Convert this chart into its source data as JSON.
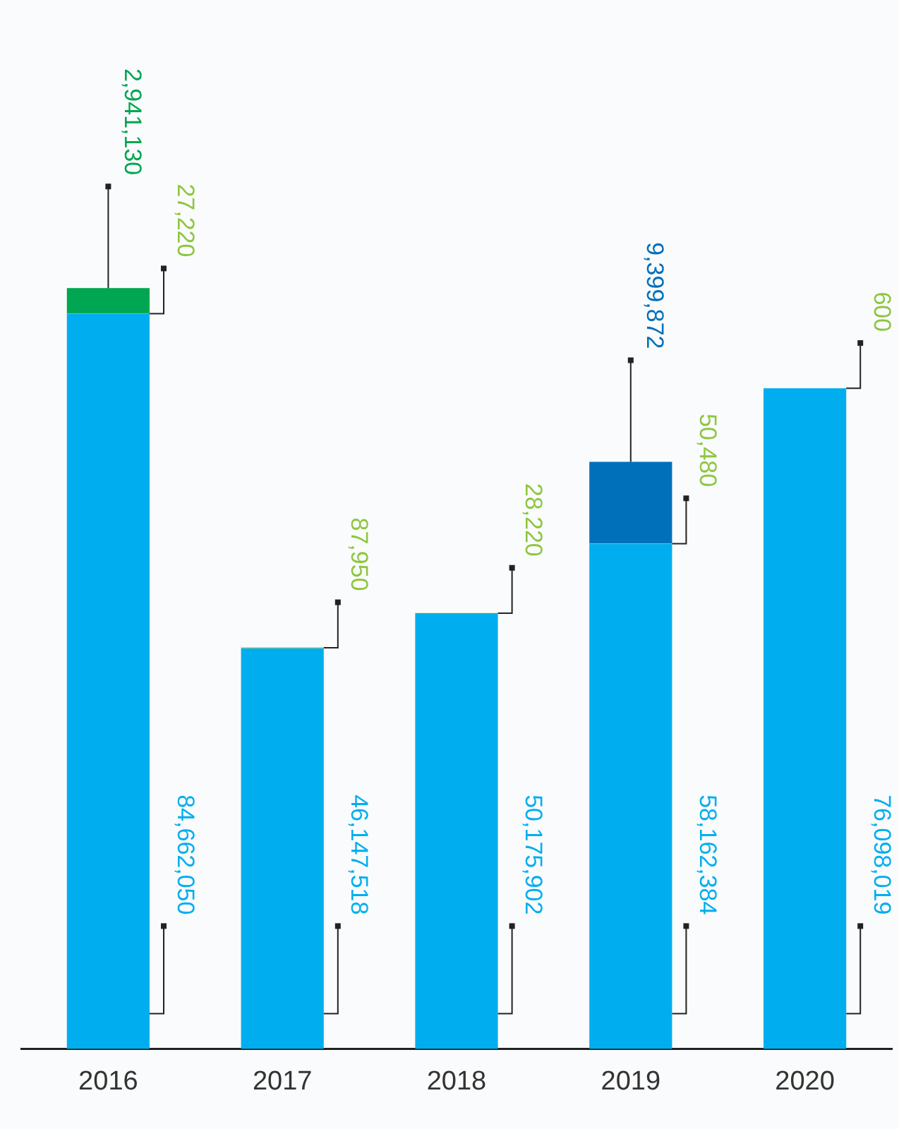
{
  "chart_data": {
    "type": "bar",
    "stacked": true,
    "categories": [
      "2016",
      "2017",
      "2018",
      "2019",
      "2020"
    ],
    "series": [
      {
        "color": "#00aeef",
        "values": [
          84662050,
          46147518,
          50175902,
          58162384,
          76098019
        ],
        "value_labels": [
          "84,662,050",
          "46,147,518",
          "50,175,902",
          "58,162,384",
          "76,098,019"
        ]
      },
      {
        "color": "#8dc63f",
        "values": [
          27220,
          87950,
          28220,
          50480,
          600
        ],
        "value_labels": [
          "27,220",
          "87,950",
          "28,220",
          "50,480",
          "600"
        ]
      },
      {
        "color": "#00a651",
        "colors": [
          "#00a651",
          null,
          null,
          "#0070bb",
          null
        ],
        "values": [
          2941130,
          null,
          null,
          9399872,
          null
        ],
        "value_labels": [
          "2,941,130",
          null,
          null,
          "9,399,872",
          null
        ]
      }
    ],
    "grid": false,
    "legend": false,
    "tick_labels": "x"
  }
}
